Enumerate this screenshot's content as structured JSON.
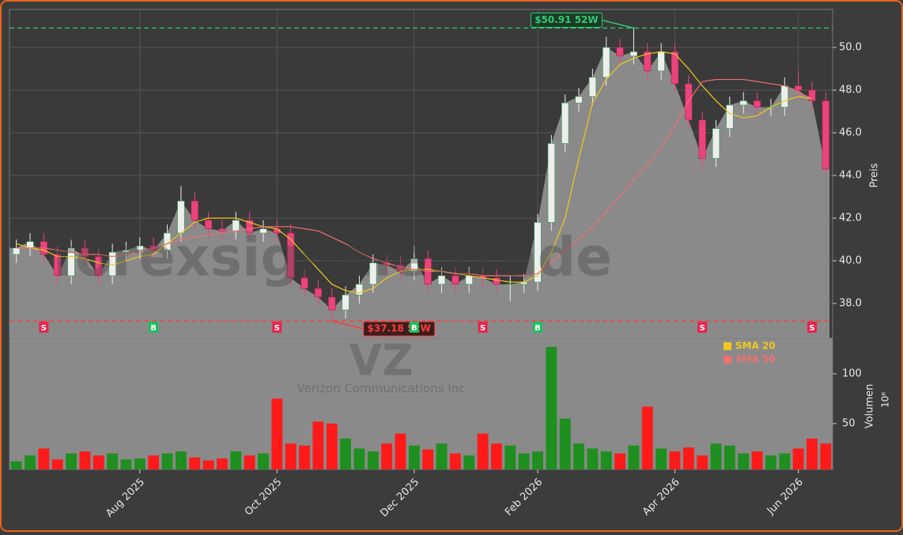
{
  "chart_data": {
    "type": "candlestick",
    "watermark": "forexsignale.trade",
    "symbol": "VZ",
    "company": "Verizon Communications Inc",
    "categories": [
      null,
      null,
      null,
      null,
      null,
      null,
      null,
      null,
      null,
      "Aug 2025",
      null,
      null,
      null,
      null,
      null,
      null,
      null,
      null,
      null,
      "Oct 2025",
      null,
      null,
      null,
      null,
      null,
      null,
      null,
      null,
      null,
      "Dec 2025",
      null,
      null,
      null,
      null,
      null,
      null,
      null,
      null,
      "Feb 2026",
      null,
      null,
      null,
      null,
      null,
      null,
      null,
      null,
      null,
      "Apr 2026",
      null,
      null,
      null,
      null,
      null,
      null,
      null,
      null,
      "Jun 2026",
      null,
      null
    ],
    "open": [
      40.3,
      40.6,
      40.9,
      40.3,
      39.3,
      40.6,
      40.2,
      39.3,
      40.4,
      40.5,
      40.7,
      40.5,
      41.3,
      42.8,
      41.9,
      41.5,
      41.4,
      41.9,
      41.3,
      41.5,
      41.3,
      39.2,
      38.7,
      38.3,
      37.7,
      38.4,
      38.9,
      39.9,
      39.8,
      39.5,
      40.1,
      38.9,
      39.3,
      38.9,
      39.3,
      39.2,
      38.9,
      38.9,
      39.0,
      41.8,
      45.5,
      47.4,
      47.7,
      48.6,
      50.0,
      49.6,
      49.8,
      48.9,
      49.8,
      48.3,
      46.6,
      44.8,
      46.2,
      47.3,
      47.5,
      47.2,
      47.2,
      48.2,
      48.0,
      47.5
    ],
    "high": [
      41.0,
      41.3,
      41.3,
      40.7,
      41.0,
      41.0,
      40.6,
      40.8,
      40.9,
      41.1,
      41.1,
      41.7,
      43.5,
      43.2,
      42.3,
      41.9,
      42.3,
      42.3,
      41.9,
      41.9,
      41.7,
      39.6,
      39.1,
      38.7,
      38.8,
      39.3,
      40.3,
      40.3,
      40.2,
      40.7,
      40.5,
      39.7,
      39.7,
      39.7,
      39.7,
      39.6,
      39.3,
      39.4,
      42.2,
      45.9,
      47.8,
      48.1,
      49.0,
      50.5,
      50.4,
      50.91,
      50.2,
      50.2,
      50.2,
      48.7,
      47.0,
      46.6,
      47.7,
      47.9,
      47.9,
      47.6,
      48.6,
      48.9,
      48.4,
      47.9
    ],
    "low": [
      39.9,
      40.2,
      39.9,
      38.9,
      38.9,
      39.8,
      38.9,
      38.9,
      40.0,
      40.1,
      40.1,
      40.1,
      40.9,
      41.5,
      41.1,
      41.0,
      41.0,
      40.9,
      40.9,
      40.9,
      38.8,
      38.3,
      37.9,
      37.18,
      37.3,
      38.0,
      38.5,
      39.4,
      39.1,
      39.1,
      38.5,
      38.5,
      38.5,
      38.5,
      38.8,
      38.5,
      38.1,
      38.5,
      38.6,
      41.4,
      45.1,
      47.0,
      47.3,
      48.2,
      49.2,
      49.2,
      48.5,
      48.5,
      47.9,
      46.2,
      44.3,
      44.4,
      45.8,
      46.9,
      46.8,
      46.8,
      46.8,
      47.6,
      47.1,
      44.0
    ],
    "close": [
      40.6,
      40.9,
      40.3,
      39.3,
      40.6,
      40.2,
      39.3,
      40.4,
      40.5,
      40.7,
      40.5,
      41.3,
      42.8,
      41.9,
      41.5,
      41.4,
      41.9,
      41.3,
      41.5,
      41.3,
      39.2,
      38.7,
      38.3,
      37.7,
      38.4,
      38.9,
      39.9,
      39.8,
      39.5,
      40.1,
      38.9,
      39.3,
      38.9,
      39.3,
      39.2,
      38.9,
      38.9,
      39.0,
      41.8,
      45.5,
      47.4,
      47.7,
      48.6,
      50.0,
      49.6,
      49.8,
      48.9,
      49.8,
      48.3,
      46.6,
      44.8,
      46.2,
      47.3,
      47.5,
      47.2,
      47.2,
      48.2,
      48.0,
      47.5,
      44.3
    ],
    "up_color": "#eeeeee",
    "down_color": "#e8457c",
    "area_color": "#8a8a8a",
    "ylim": [
      36.37,
      51.78
    ],
    "yticks": [
      {
        "value": 38,
        "label": "38.0"
      },
      {
        "value": 40,
        "label": "40.0"
      },
      {
        "value": 42,
        "label": "42.0"
      },
      {
        "value": 44,
        "label": "44.0"
      },
      {
        "value": 46,
        "label": "46.0"
      },
      {
        "value": 48,
        "label": "48.0"
      },
      {
        "value": 50,
        "label": "50.0"
      }
    ],
    "ylabel": "Preis",
    "grid": true,
    "series": [
      {
        "name": "SMA 20",
        "color": "#f2c81e",
        "values": [
          40.8,
          40.6,
          40.5,
          40.2,
          40.2,
          40.1,
          39.9,
          39.8,
          40.0,
          40.2,
          40.3,
          40.8,
          41.3,
          41.8,
          42.0,
          42.0,
          42.0,
          41.8,
          41.6,
          41.5,
          41.0,
          40.3,
          39.6,
          38.9,
          38.6,
          38.5,
          38.7,
          39.2,
          39.5,
          39.6,
          39.6,
          39.5,
          39.4,
          39.3,
          39.2,
          39.1,
          39.0,
          39.0,
          39.3,
          40.4,
          42.0,
          44.8,
          47.4,
          48.5,
          49.2,
          49.5,
          49.7,
          49.8,
          49.7,
          49.0,
          48.2,
          47.5,
          46.9,
          46.7,
          46.8,
          47.2,
          47.5,
          47.7,
          47.6,
          null
        ]
      },
      {
        "name": "SMA 50",
        "color": "#f07070",
        "values": [
          40.6,
          40.6,
          40.6,
          40.5,
          40.4,
          40.3,
          40.3,
          40.2,
          40.3,
          40.4,
          40.6,
          40.8,
          41.0,
          41.1,
          41.2,
          41.3,
          41.4,
          41.5,
          41.6,
          41.6,
          41.6,
          41.5,
          41.4,
          41.1,
          40.8,
          40.4,
          40.1,
          39.9,
          39.7,
          39.6,
          39.5,
          39.5,
          39.4,
          39.4,
          39.3,
          39.3,
          39.3,
          39.3,
          39.4,
          39.9,
          40.5,
          41.0,
          41.6,
          42.3,
          43.0,
          43.8,
          44.5,
          45.3,
          46.3,
          47.5,
          48.4,
          48.5,
          48.5,
          48.5,
          48.4,
          48.3,
          48.2,
          47.9,
          47.6,
          null
        ]
      }
    ],
    "legend": "upper right",
    "hlines": [
      {
        "value": 50.91,
        "label": "$50.91 52W",
        "color": "#2ecc71",
        "index": 45
      },
      {
        "value": 37.18,
        "label": "$37.18 52W",
        "color": "#ff3b3b",
        "index": 23
      }
    ],
    "signals": [
      {
        "index": 2,
        "label": "S",
        "color": "#e8254e"
      },
      {
        "index": 10,
        "label": "B",
        "color": "#1fbf5f"
      },
      {
        "index": 19,
        "label": "S",
        "color": "#e8254e"
      },
      {
        "index": 29,
        "label": "B",
        "color": "#1fbf5f"
      },
      {
        "index": 34,
        "label": "S",
        "color": "#e8254e"
      },
      {
        "index": 38,
        "label": "B",
        "color": "#1fbf5f"
      },
      {
        "index": 50,
        "label": "S",
        "color": "#e8254e"
      },
      {
        "index": 58,
        "label": "S",
        "color": "#e8254e"
      }
    ],
    "volume": {
      "values": [
        12,
        18,
        25,
        14,
        20,
        22,
        18,
        20,
        14,
        15,
        18,
        20,
        22,
        16,
        13,
        15,
        22,
        18,
        20,
        75,
        30,
        28,
        52,
        50,
        35,
        25,
        22,
        30,
        40,
        28,
        24,
        30,
        20,
        18,
        40,
        30,
        28,
        20,
        22,
        127,
        55,
        30,
        25,
        22,
        20,
        28,
        67,
        25,
        22,
        26,
        18,
        30,
        28,
        20,
        22,
        18,
        20,
        25,
        35,
        30
      ],
      "ylim": [
        4,
        135.7
      ],
      "yticks": [
        50,
        100
      ],
      "ylabel": "Volumen",
      "scale_label": "10⁶",
      "up_color": "#1f8f1f",
      "down_color": "#ff1a1a"
    }
  }
}
